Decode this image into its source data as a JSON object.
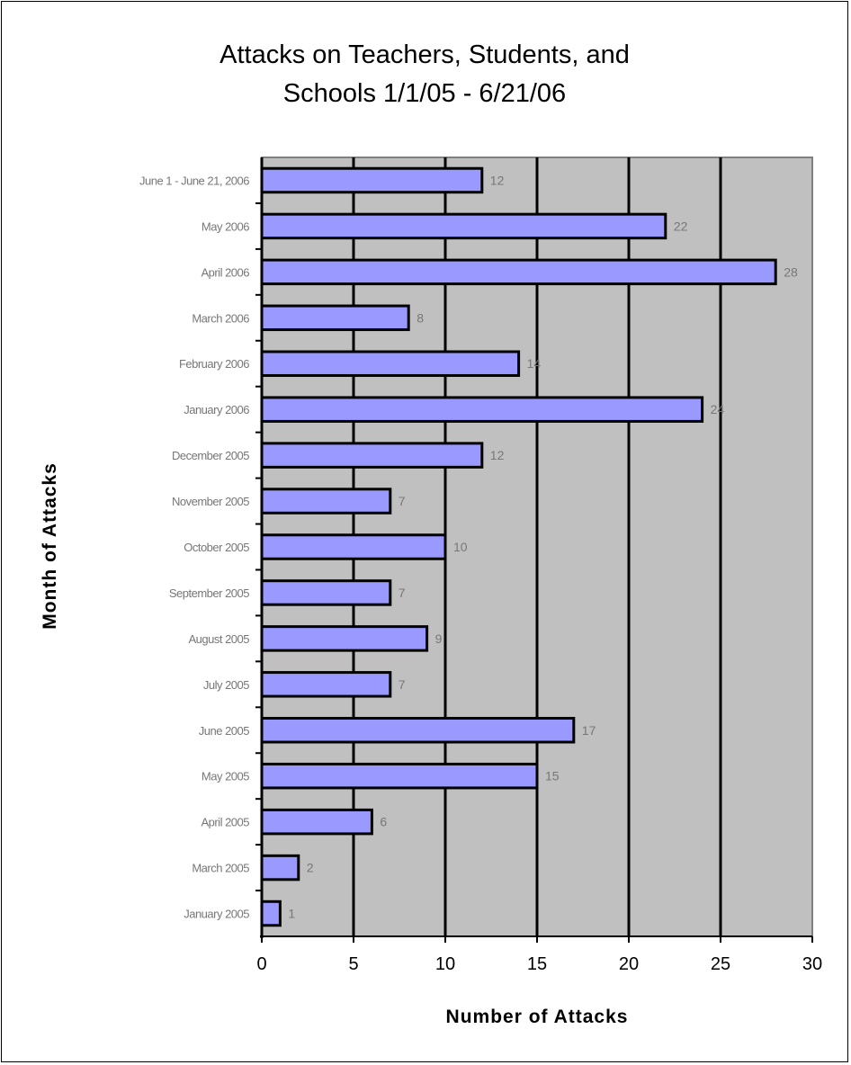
{
  "chart_data": {
    "type": "bar",
    "orientation": "horizontal",
    "title_lines": [
      "Attacks on Teachers, Students, and",
      "Schools 1/1/05 - 6/21/06"
    ],
    "xlabel": "Number of Attacks",
    "ylabel": "Month of Attacks",
    "categories": [
      "June 1 - June 21, 2006",
      "May 2006",
      "April 2006",
      "March 2006",
      "February 2006",
      "January 2006",
      "December 2005",
      "November 2005",
      "October 2005",
      "September 2005",
      "August 2005",
      "July 2005",
      "June 2005",
      "May 2005",
      "April 2005",
      "March 2005",
      "January 2005"
    ],
    "values": [
      12,
      22,
      28,
      8,
      14,
      24,
      12,
      7,
      10,
      7,
      9,
      7,
      17,
      15,
      6,
      2,
      1
    ],
    "xlim": [
      0,
      30
    ],
    "xticks": [
      "0",
      "5",
      "10",
      "15",
      "20",
      "25",
      "30"
    ],
    "grid": "vertical major gridlines",
    "legend": "none",
    "data_labels": true,
    "colors": {
      "bar": "#9999ff",
      "plot_background": "#c0c0c0",
      "bar_border": "#000000"
    }
  }
}
